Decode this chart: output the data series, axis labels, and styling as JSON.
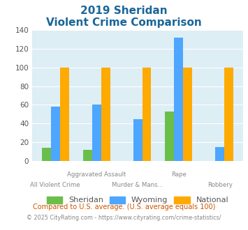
{
  "title_line1": "2019 Sheridan",
  "title_line2": "Violent Crime Comparison",
  "categories": [
    "All Violent Crime",
    "Aggravated Assault",
    "Murder & Mans...",
    "Rape",
    "Robbery"
  ],
  "sheridan": [
    14,
    12,
    0,
    53,
    0
  ],
  "wyoming": [
    58,
    60,
    45,
    132,
    15
  ],
  "national": [
    100,
    100,
    100,
    100,
    100
  ],
  "sheridan_color": "#6abf4b",
  "wyoming_color": "#4da6ff",
  "national_color": "#ffaa00",
  "ylim": [
    0,
    140
  ],
  "yticks": [
    0,
    20,
    40,
    60,
    80,
    100,
    120,
    140
  ],
  "bg_color": "#ddeef5",
  "legend_labels": [
    "Sheridan",
    "Wyoming",
    "National"
  ],
  "footnote1": "Compared to U.S. average. (U.S. average equals 100)",
  "footnote2": "© 2025 CityRating.com - https://www.cityrating.com/crime-statistics/",
  "title_color": "#1a6699",
  "footnote1_color": "#cc5500",
  "footnote2_color": "#888888",
  "top_labels": [
    [
      1,
      "Aggravated Assault"
    ],
    [
      3,
      "Rape"
    ]
  ],
  "bot_labels": [
    [
      0,
      "All Violent Crime"
    ],
    [
      2,
      "Murder & Mans..."
    ],
    [
      4,
      "Robbery"
    ]
  ]
}
